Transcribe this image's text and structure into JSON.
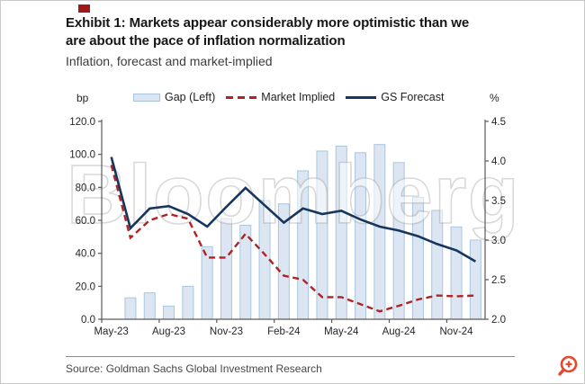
{
  "header": {
    "title_line1": "Exhibit 1: Markets appear considerably more optimistic than we",
    "title_line2": "are about the pace of inflation normalization",
    "subtitle": "Inflation, forecast and market-implied"
  },
  "page": {
    "watermark": "Bloomberg"
  },
  "colors": {
    "accent_red": "#9e1a1a",
    "zoom_icon": "#e8472b"
  },
  "footer": {
    "source": "Source: Goldman Sachs Global Investment Research"
  },
  "chart_data": {
    "type": "combo",
    "title": "Inflation, forecast and market-implied",
    "grid": false,
    "legend_position": "top",
    "categories": [
      "May-23",
      "Jun-23",
      "Jul-23",
      "Aug-23",
      "Sep-23",
      "Oct-23",
      "Nov-23",
      "Dec-23",
      "Jan-24",
      "Feb-24",
      "Mar-24",
      "Apr-24",
      "May-24",
      "Jun-24",
      "Jul-24",
      "Aug-24",
      "Sep-24",
      "Oct-24",
      "Nov-24",
      "Dec-24"
    ],
    "x_axis_labels": [
      "May-23",
      "Aug-23",
      "Nov-23",
      "Feb-24",
      "May-24",
      "Aug-24",
      "Nov-24"
    ],
    "left_axis": {
      "label": "bp",
      "min": 0,
      "max": 120,
      "ticks": [
        0,
        20,
        40,
        60,
        80,
        100,
        120
      ],
      "tick_labels": [
        "0.0",
        "20.0",
        "40.0",
        "60.0",
        "80.0",
        "100.0",
        "120.0"
      ]
    },
    "right_axis": {
      "label": "%",
      "min": 2.0,
      "max": 4.5,
      "ticks": [
        2.0,
        2.5,
        3.0,
        3.5,
        4.0,
        4.5
      ],
      "tick_labels": [
        "2.0",
        "2.5",
        "3.0",
        "3.5",
        "4.0",
        "4.5"
      ]
    },
    "series": [
      {
        "name": "Gap (Left)",
        "type": "bar",
        "axis": "left",
        "unit": "bp",
        "fill": "#dce6f2",
        "stroke": "#a9c5de",
        "values": [
          null,
          13,
          16,
          8,
          20,
          44,
          61,
          57,
          72,
          70,
          90,
          102,
          105,
          101,
          106,
          95,
          74,
          66,
          56,
          48
        ]
      },
      {
        "name": "Market Implied",
        "type": "line",
        "dash": true,
        "axis": "right",
        "unit": "%",
        "color": "#b02323",
        "values": [
          3.95,
          3.03,
          3.25,
          3.33,
          3.27,
          2.78,
          2.78,
          3.08,
          2.82,
          2.55,
          2.5,
          2.28,
          2.28,
          2.19,
          2.1,
          2.17,
          2.25,
          2.3,
          2.29,
          2.3
        ]
      },
      {
        "name": "GS Forecast",
        "type": "line",
        "dash": false,
        "axis": "right",
        "unit": "%",
        "color": "#17365d",
        "values": [
          4.05,
          3.15,
          3.4,
          3.43,
          3.33,
          3.17,
          3.42,
          3.66,
          3.44,
          3.22,
          3.4,
          3.33,
          3.37,
          3.26,
          3.17,
          3.12,
          3.05,
          2.95,
          2.87,
          2.73
        ]
      }
    ]
  }
}
